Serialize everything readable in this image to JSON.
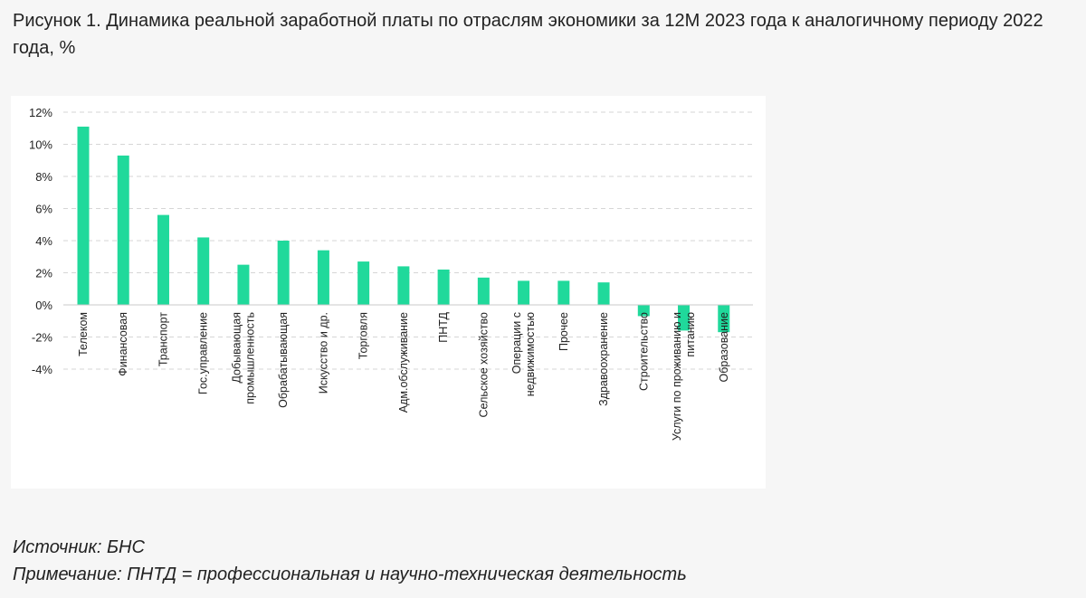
{
  "title": "Рисунок 1. Динамика реальной заработной платы по отраслям экономики за 12М 2023 года к аналогичному периоду 2022 года, %",
  "source": "Источник: БНС",
  "note": "Примечание: ПНТД = профессиональная и научно-техническая деятельность",
  "colors": {
    "bar": "#20d99b",
    "grid": "#d6d6d6",
    "axis": "#c8c8c8",
    "text": "#222222"
  },
  "chart_data": {
    "type": "bar",
    "categories": [
      [
        "Телеком"
      ],
      [
        "Финансовая"
      ],
      [
        "Транспорт"
      ],
      [
        "Гос.управление"
      ],
      [
        "Добывающая",
        "промышленность"
      ],
      [
        "Обрабатывающая"
      ],
      [
        "Искусство и др."
      ],
      [
        "Торговля"
      ],
      [
        "Адм.обслуживание"
      ],
      [
        "ПНТД"
      ],
      [
        "Сельское хозяйство"
      ],
      [
        "Операции с",
        "недвижимостью"
      ],
      [
        "Прочее"
      ],
      [
        "Здравоохранение"
      ],
      [
        "Строительство"
      ],
      [
        "Услуги по проживанию и",
        "питанию"
      ],
      [
        "Образование"
      ]
    ],
    "values": [
      11.1,
      9.3,
      5.6,
      4.2,
      2.5,
      4.0,
      3.4,
      2.7,
      2.4,
      2.2,
      1.7,
      1.5,
      1.5,
      1.4,
      -0.7,
      -1.6,
      -1.7
    ],
    "yticks": [
      "12%",
      "10%",
      "8%",
      "6%",
      "4%",
      "2%",
      "0%",
      "-2%",
      "-4%"
    ],
    "ylim": [
      -4,
      12
    ],
    "grid": true,
    "legend": "none"
  }
}
